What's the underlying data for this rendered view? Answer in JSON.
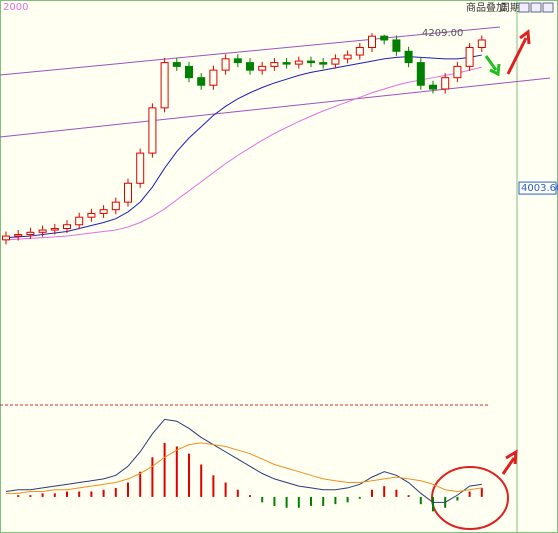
{
  "chart_data": [
    {
      "type": "candlestick",
      "corner_label": "2000",
      "toolbar": [
        "商品叠加",
        "周期"
      ],
      "annotation": "4209.00",
      "ylim": [
        3716,
        4253
      ],
      "yticks": [
        {
          "value": 4003.6,
          "label": "4003.60"
        }
      ],
      "up_color": "#e00000",
      "down_color": "#008000",
      "open": [
        3935,
        3940,
        3942,
        3945,
        3948,
        3950,
        3955,
        3965,
        3970,
        3975,
        3985,
        4010,
        4050,
        4110,
        4170,
        4165,
        4150,
        4140,
        4160,
        4175,
        4170,
        4160,
        4165,
        4170,
        4168,
        4172,
        4170,
        4168,
        4175,
        4180,
        4190,
        4205,
        4200,
        4185,
        4170,
        4140,
        4135,
        4150,
        4165,
        4190
      ],
      "high": [
        3946,
        3948,
        3951,
        3954,
        3956,
        3961,
        3971,
        3976,
        3981,
        3991,
        4016,
        4056,
        4116,
        4176,
        4176,
        4171,
        4156,
        4166,
        4181,
        4181,
        4176,
        4171,
        4176,
        4176,
        4178,
        4178,
        4176,
        4181,
        4186,
        4196,
        4209,
        4207,
        4206,
        4191,
        4176,
        4146,
        4156,
        4171,
        4196,
        4206
      ],
      "low": [
        3929,
        3934,
        3936,
        3939,
        3942,
        3944,
        3949,
        3959,
        3964,
        3969,
        3979,
        4004,
        4044,
        4104,
        4159,
        4144,
        4134,
        4134,
        4154,
        4164,
        4154,
        4154,
        4159,
        4162,
        4162,
        4164,
        4162,
        4162,
        4169,
        4174,
        4184,
        4194,
        4179,
        4164,
        4134,
        4129,
        4129,
        4144,
        4159,
        4184
      ],
      "close": [
        3940,
        3942,
        3945,
        3948,
        3950,
        3955,
        3965,
        3970,
        3975,
        3985,
        4010,
        4050,
        4110,
        4170,
        4165,
        4150,
        4140,
        4160,
        4175,
        4170,
        4160,
        4165,
        4170,
        4168,
        4172,
        4170,
        4168,
        4175,
        4180,
        4190,
        4205,
        4200,
        4185,
        4170,
        4140,
        4135,
        4150,
        4165,
        4190,
        4200
      ],
      "series": [
        {
          "color": "#1e1ebe",
          "values": [
            3938,
            3939,
            3940,
            3942,
            3944,
            3946,
            3950,
            3954,
            3958,
            3963,
            3972,
            3985,
            4005,
            4030,
            4052,
            4070,
            4085,
            4100,
            4112,
            4122,
            4130,
            4137,
            4143,
            4148,
            4153,
            4157,
            4160,
            4163,
            4166,
            4169,
            4172,
            4175,
            4177,
            4178,
            4177,
            4176,
            4175,
            4175,
            4177,
            4180
          ]
        },
        {
          "color": "#e070e0",
          "values": [
            3935,
            3936,
            3937,
            3938,
            3939,
            3940,
            3942,
            3944,
            3946,
            3948,
            3952,
            3958,
            3966,
            3976,
            3988,
            4000,
            4012,
            4024,
            4036,
            4047,
            4057,
            4067,
            4076,
            4084,
            4092,
            4099,
            4106,
            4112,
            4118,
            4124,
            4130,
            4135,
            4140,
            4144,
            4147,
            4150,
            4153,
            4156,
            4160,
            4164
          ]
        }
      ]
    },
    {
      "type": "macd",
      "ylim": [
        -20,
        51
      ],
      "up_color": "#e00000",
      "down_color": "#008000",
      "values": [
        0,
        1,
        1,
        2,
        2,
        3,
        3,
        3,
        4,
        5,
        8,
        14,
        22,
        30,
        28,
        24,
        18,
        12,
        8,
        4,
        1,
        -3,
        -5,
        -6,
        -6,
        -5,
        -5,
        -4,
        -3,
        -1,
        4,
        6,
        4,
        1,
        -4,
        -8,
        -6,
        -2,
        3,
        5
      ],
      "series": [
        {
          "color": "#2a3a7a",
          "values": [
            3,
            4,
            4,
            5,
            6,
            7,
            8,
            9,
            10,
            12,
            17,
            25,
            35,
            43,
            42,
            38,
            33,
            29,
            25,
            21,
            17,
            13,
            10,
            8,
            6,
            5,
            4,
            4,
            5,
            7,
            11,
            14,
            12,
            8,
            2,
            -3,
            -3,
            1,
            6,
            7
          ]
        },
        {
          "color": "#f09020",
          "values": [
            2,
            2,
            3,
            3,
            4,
            4,
            5,
            6,
            7,
            8,
            10,
            13,
            17,
            22,
            26,
            29,
            30,
            29,
            28,
            26,
            24,
            21,
            18,
            16,
            14,
            12,
            10,
            9,
            8,
            8,
            9,
            10,
            11,
            10,
            9,
            7,
            4,
            3,
            4,
            5
          ]
        }
      ]
    }
  ]
}
